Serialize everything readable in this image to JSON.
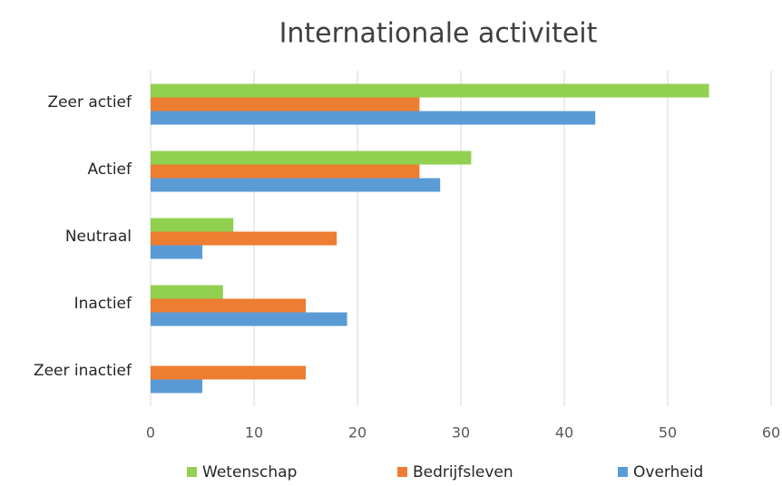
{
  "chart_data": {
    "type": "barh",
    "title": "Internationale activiteit",
    "categories": [
      "Zeer actief",
      "Actief",
      "Neutraal",
      "Inactief",
      "Zeer inactief"
    ],
    "series": [
      {
        "name": "Wetenschap",
        "color": "#92d050",
        "values": [
          54,
          31,
          8,
          7,
          0
        ]
      },
      {
        "name": "Bedrijfsleven",
        "color": "#ed7d31",
        "values": [
          26,
          26,
          18,
          15,
          15
        ]
      },
      {
        "name": "Overheid",
        "color": "#5b9bd5",
        "values": [
          43,
          28,
          5,
          19,
          5
        ]
      }
    ],
    "xlim": [
      0,
      60
    ],
    "xticks": [
      0,
      10,
      20,
      30,
      40,
      50,
      60
    ],
    "grid": true,
    "legend": "bottom"
  }
}
